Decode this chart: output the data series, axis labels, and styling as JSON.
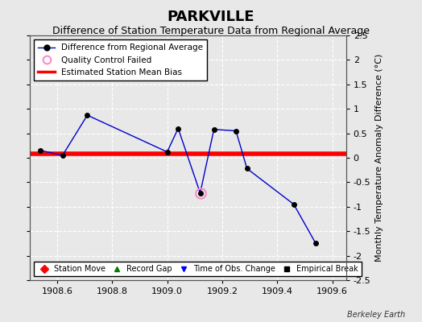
{
  "title": "PARKVILLE",
  "subtitle": "Difference of Station Temperature Data from Regional Average",
  "ylabel": "Monthly Temperature Anomaly Difference (°C)",
  "xlim": [
    1908.5,
    1909.65
  ],
  "ylim": [
    -2.5,
    2.5
  ],
  "xticks": [
    1908.6,
    1908.8,
    1909.0,
    1909.2,
    1909.4,
    1909.6
  ],
  "yticks": [
    -2.5,
    -2.0,
    -1.5,
    -1.0,
    -0.5,
    0.0,
    0.5,
    1.0,
    1.5,
    2.0,
    2.5
  ],
  "ytick_labels": [
    "-2.5",
    "-2",
    "-1.5",
    "-1",
    "-0.5",
    "0",
    "0.5",
    "1",
    "1.5",
    "2",
    "2.5"
  ],
  "line_x": [
    1908.54,
    1908.62,
    1908.71,
    1909.0,
    1909.04,
    1909.12,
    1909.17,
    1909.25,
    1909.29,
    1909.46,
    1909.54
  ],
  "line_y": [
    0.15,
    0.05,
    0.87,
    0.12,
    0.6,
    -0.72,
    0.58,
    0.55,
    -0.22,
    -0.95,
    -1.75
  ],
  "line_color": "#0000cc",
  "line_marker_color": "#000000",
  "line_marker_size": 4,
  "qc_failed_x": [
    1909.12
  ],
  "qc_failed_y": [
    -0.72
  ],
  "bias_y": 0.08,
  "bias_color": "#ff0000",
  "bias_linewidth": 4,
  "bg_color": "#e8e8e8",
  "grid_color": "#ffffff",
  "grid_style": "--",
  "watermark": "Berkeley Earth",
  "leg1_labels": [
    "Difference from Regional Average",
    "Quality Control Failed",
    "Estimated Station Mean Bias"
  ],
  "leg2_labels": [
    "Station Move",
    "Record Gap",
    "Time of Obs. Change",
    "Empirical Break"
  ],
  "title_fontsize": 13,
  "subtitle_fontsize": 9,
  "tick_fontsize": 8,
  "ylabel_fontsize": 8
}
